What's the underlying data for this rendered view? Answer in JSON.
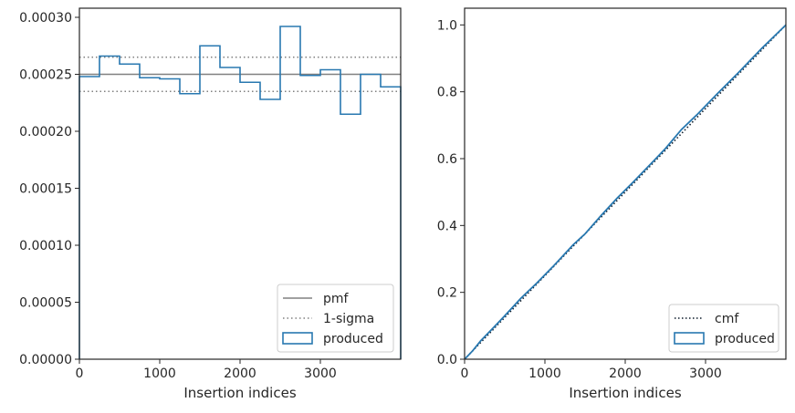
{
  "chart_data": [
    {
      "type": "histogram-step",
      "xlabel": "Insertion indices",
      "ylabel": "",
      "xlim": [
        0,
        4000
      ],
      "ylim": [
        0,
        0.000308
      ],
      "xticks": [
        0,
        1000,
        2000,
        3000
      ],
      "yticks": [
        0,
        5e-05,
        0.0001,
        0.00015,
        0.0002,
        0.00025,
        0.0003
      ],
      "ytick_labels": [
        "0.00000",
        "0.00005",
        "0.00010",
        "0.00015",
        "0.00020",
        "0.00025",
        "0.00030"
      ],
      "bin_edges": [
        0,
        250,
        500,
        750,
        1000,
        1250,
        1500,
        1750,
        2000,
        2250,
        2500,
        2750,
        3000,
        3250,
        3500,
        3750,
        4000
      ],
      "series": [
        {
          "name": "produced",
          "values": [
            0.000248,
            0.000266,
            0.000259,
            0.000247,
            0.000246,
            0.000233,
            0.000275,
            0.000256,
            0.000243,
            0.000228,
            0.000292,
            0.000249,
            0.000254,
            0.000215,
            0.00025,
            0.000239
          ]
        }
      ],
      "reference_lines": [
        {
          "name": "pmf",
          "y": 0.00025,
          "style": "solid"
        },
        {
          "name": "1-sigma",
          "y": [
            0.000235,
            0.000265
          ],
          "style": "dotted"
        }
      ],
      "legend": [
        "pmf",
        "1-sigma",
        "produced"
      ],
      "legend_position": "lower-right"
    },
    {
      "type": "line",
      "xlabel": "Insertion indices",
      "ylabel": "",
      "xlim": [
        0,
        4000
      ],
      "ylim": [
        0,
        1.05
      ],
      "xticks": [
        0,
        1000,
        2000,
        3000
      ],
      "yticks": [
        0,
        0.2,
        0.4,
        0.6,
        0.8,
        1.0
      ],
      "ytick_labels": [
        "0.0",
        "0.2",
        "0.4",
        "0.6",
        "0.8",
        "1.0"
      ],
      "series": [
        {
          "name": "cmf",
          "style": "dotted",
          "x": [
            0,
            4000
          ],
          "y": [
            0,
            1
          ]
        },
        {
          "name": "produced",
          "style": "solid",
          "x": [
            0,
            100,
            200,
            350,
            500,
            700,
            900,
            1100,
            1350,
            1500,
            1700,
            1900,
            2100,
            2350,
            2500,
            2700,
            2900,
            3150,
            3400,
            3700,
            4000
          ],
          "y": [
            0,
            0.025,
            0.055,
            0.092,
            0.13,
            0.182,
            0.228,
            0.277,
            0.342,
            0.375,
            0.43,
            0.482,
            0.53,
            0.592,
            0.63,
            0.687,
            0.733,
            0.795,
            0.855,
            0.93,
            1.0
          ]
        }
      ],
      "legend": [
        "cmf",
        "produced"
      ],
      "legend_position": "lower-right"
    }
  ],
  "colors": {
    "produced": "#2878b0",
    "pmf": "#808080",
    "sigma": "#808080",
    "cmf": "#0d1b2a",
    "axes": "#262626"
  }
}
